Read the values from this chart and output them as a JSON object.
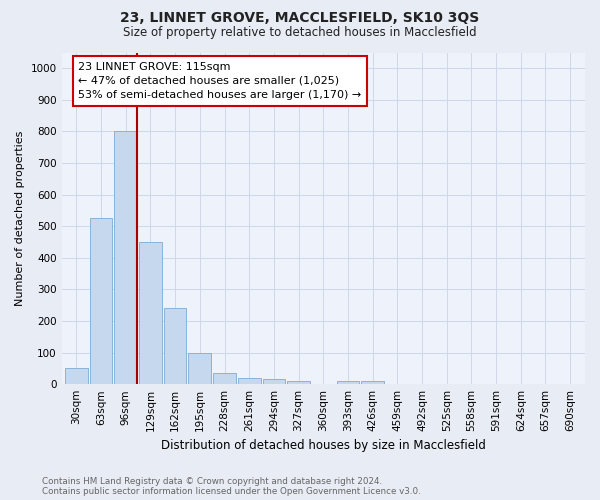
{
  "title1": "23, LINNET GROVE, MACCLESFIELD, SK10 3QS",
  "title2": "Size of property relative to detached houses in Macclesfield",
  "xlabel": "Distribution of detached houses by size in Macclesfield",
  "ylabel": "Number of detached properties",
  "bar_color": "#c5d8ee",
  "bar_edge_color": "#7aadd4",
  "bins": [
    "30sqm",
    "63sqm",
    "96sqm",
    "129sqm",
    "162sqm",
    "195sqm",
    "228sqm",
    "261sqm",
    "294sqm",
    "327sqm",
    "360sqm",
    "393sqm",
    "426sqm",
    "459sqm",
    "492sqm",
    "525sqm",
    "558sqm",
    "591sqm",
    "624sqm",
    "657sqm",
    "690sqm"
  ],
  "values": [
    50,
    525,
    800,
    450,
    240,
    100,
    35,
    20,
    15,
    10,
    0,
    10,
    10,
    0,
    0,
    0,
    0,
    0,
    0,
    0,
    0
  ],
  "vline_x": 2.46,
  "vline_color": "#aa0000",
  "annotation_title": "23 LINNET GROVE: 115sqm",
  "annotation_line1": "← 47% of detached houses are smaller (1,025)",
  "annotation_line2": "53% of semi-detached houses are larger (1,170) →",
  "annotation_box_facecolor": "#ffffff",
  "annotation_box_edgecolor": "#cc0000",
  "ylim": [
    0,
    1050
  ],
  "yticks": [
    0,
    100,
    200,
    300,
    400,
    500,
    600,
    700,
    800,
    900,
    1000
  ],
  "footer1": "Contains HM Land Registry data © Crown copyright and database right 2024.",
  "footer2": "Contains public sector information licensed under the Open Government Licence v3.0.",
  "fig_bg_color": "#e8ecf4",
  "plot_bg_color": "#eef2fa",
  "grid_color": "#d0d8e8",
  "title1_fontsize": 10,
  "title2_fontsize": 8.5,
  "ylabel_fontsize": 8,
  "xlabel_fontsize": 8.5,
  "tick_fontsize": 7.5,
  "ann_fontsize": 8
}
